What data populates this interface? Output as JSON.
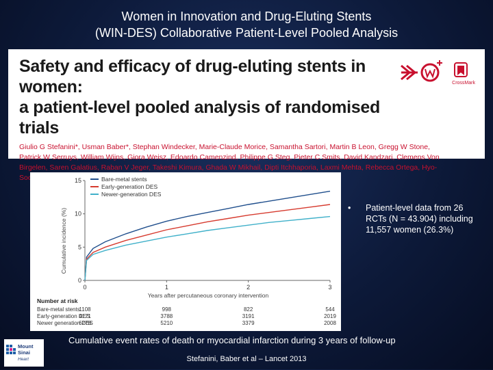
{
  "slide": {
    "title_line1": "Women in Innovation and Drug-Eluting Stents",
    "title_line2": "(WIN-DES) Collaborative Patient-Level Pooled Analysis"
  },
  "paper": {
    "title_line1": "Safety and efficacy of drug-eluting stents in women:",
    "title_line2": "a patient-level pooled analysis of randomised trials",
    "authors": "Giulio G Stefanini*, Usman Baber*, Stephan Windecker, Marie-Claude Morice, Samantha Sartori, Martin B Leon, Gregg W Stone, Patrick W Serruys, William Wijns, Giora Weisz, Edoardo Camenzind, Philippe G Steg, Pieter C Smits, David Kandzari, Clemens Von Birgelen, Saren Galatius, Raban V Jeger, Takeshi Kimura, Ghada W Mikhail, Dipti Itchhaporia, Laxmi Mehta, Rebecca Ortega, Hyo-Soo Kim, Marco Valgimigli, Adnan Kastrati, Alaide Chieffo, Roxana Mehran",
    "crossmark_label": "CrossMark",
    "colors": {
      "heading": "#1a1a1a",
      "authors": "#c8102e"
    }
  },
  "chart_data": {
    "type": "line",
    "ylabel": "Cumulative incidence (%)",
    "xlabel": "Years after percutaneous coronary intervention",
    "ylim": [
      0,
      15
    ],
    "xlim": [
      0,
      3
    ],
    "y_ticks": [
      "0",
      "5",
      "10",
      "15"
    ],
    "x_ticks": [
      "0",
      "1",
      "2",
      "3"
    ],
    "legend_position": "top-left",
    "series": [
      {
        "name": "Bare-metal stents",
        "color": "#1f4e8c",
        "points": [
          [
            0,
            0
          ],
          [
            0.02,
            3.5
          ],
          [
            0.1,
            4.8
          ],
          [
            0.25,
            5.8
          ],
          [
            0.5,
            7.0
          ],
          [
            0.75,
            8.0
          ],
          [
            1.0,
            8.9
          ],
          [
            1.25,
            9.6
          ],
          [
            1.5,
            10.2
          ],
          [
            1.75,
            10.8
          ],
          [
            2.0,
            11.4
          ],
          [
            2.25,
            11.9
          ],
          [
            2.5,
            12.4
          ],
          [
            2.75,
            12.9
          ],
          [
            3.0,
            13.4
          ]
        ]
      },
      {
        "name": "Early-generation DES",
        "color": "#d63a2e",
        "points": [
          [
            0,
            0
          ],
          [
            0.02,
            3.2
          ],
          [
            0.1,
            4.2
          ],
          [
            0.25,
            5.0
          ],
          [
            0.5,
            6.0
          ],
          [
            0.75,
            6.8
          ],
          [
            1.0,
            7.6
          ],
          [
            1.25,
            8.2
          ],
          [
            1.5,
            8.8
          ],
          [
            1.75,
            9.3
          ],
          [
            2.0,
            9.8
          ],
          [
            2.25,
            10.2
          ],
          [
            2.5,
            10.6
          ],
          [
            2.75,
            11.0
          ],
          [
            3.0,
            11.4
          ]
        ]
      },
      {
        "name": "Newer-generation DES",
        "color": "#3fb0c9",
        "points": [
          [
            0,
            0
          ],
          [
            0.02,
            3.0
          ],
          [
            0.1,
            3.9
          ],
          [
            0.25,
            4.5
          ],
          [
            0.5,
            5.3
          ],
          [
            0.75,
            5.9
          ],
          [
            1.0,
            6.5
          ],
          [
            1.25,
            7.0
          ],
          [
            1.5,
            7.5
          ],
          [
            1.75,
            7.9
          ],
          [
            2.0,
            8.3
          ],
          [
            2.25,
            8.7
          ],
          [
            2.5,
            9.0
          ],
          [
            2.75,
            9.3
          ],
          [
            3.0,
            9.6
          ]
        ]
      }
    ],
    "risk_table": {
      "title": "Number at risk",
      "rows": [
        {
          "name": "Bare-metal stents",
          "values": [
            "1108",
            "998",
            "822",
            "544"
          ]
        },
        {
          "name": "Early-generation DES",
          "values": [
            "4171",
            "3788",
            "3191",
            "2019"
          ]
        },
        {
          "name": "Newer generation DES",
          "values": [
            "6278",
            "5210",
            "3379",
            "2008"
          ]
        }
      ]
    }
  },
  "bullet": {
    "symbol": "•",
    "text": "Patient-level data from 26 RCTs (N = 43.904) including 11,557 women (26.3%)"
  },
  "caption": "Cumulative event rates of death or myocardial infarction during 3 years of follow-up",
  "citation": "Stefanini, Baber et al – Lancet 2013",
  "logo": {
    "line1": "Mount",
    "line2": "Sinai",
    "line3": "Heart"
  }
}
